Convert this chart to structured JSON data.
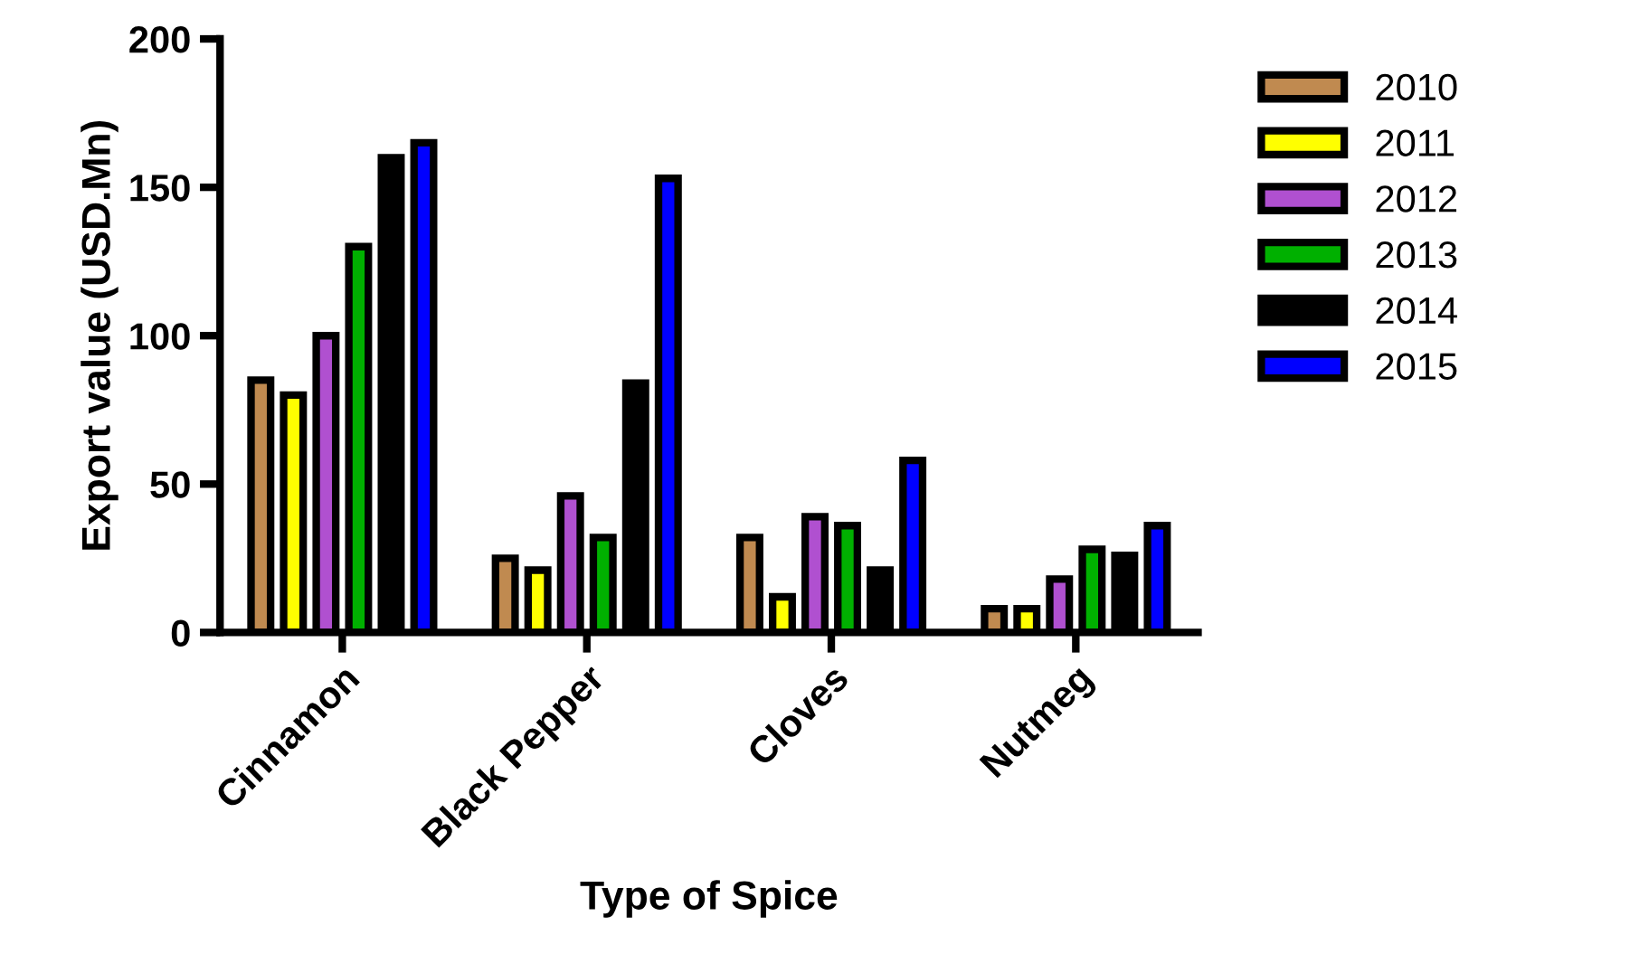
{
  "chart_data": {
    "type": "bar",
    "xlabel": "Type of Spice",
    "ylabel": "Export value (USD.Mn)",
    "categories": [
      "Cinnamon",
      "Black Pepper",
      "Cloves",
      "Nutmeg"
    ],
    "series": [
      {
        "name": "2010",
        "color": "#c08a50",
        "values": [
          85,
          25,
          32,
          8
        ]
      },
      {
        "name": "2011",
        "color": "#ffff00",
        "values": [
          80,
          21,
          12,
          8
        ]
      },
      {
        "name": "2012",
        "color": "#b050d0",
        "values": [
          100,
          46,
          39,
          18
        ]
      },
      {
        "name": "2013",
        "color": "#00b000",
        "values": [
          130,
          32,
          36,
          28
        ]
      },
      {
        "name": "2014",
        "color": "#000000",
        "values": [
          160,
          84,
          21,
          26
        ]
      },
      {
        "name": "2015",
        "color": "#0000ff",
        "values": [
          165,
          153,
          58,
          36
        ]
      }
    ],
    "ylim": [
      0,
      200
    ],
    "yticks": [
      0,
      50,
      100,
      150,
      200
    ],
    "grid": false,
    "legend": "top right"
  }
}
